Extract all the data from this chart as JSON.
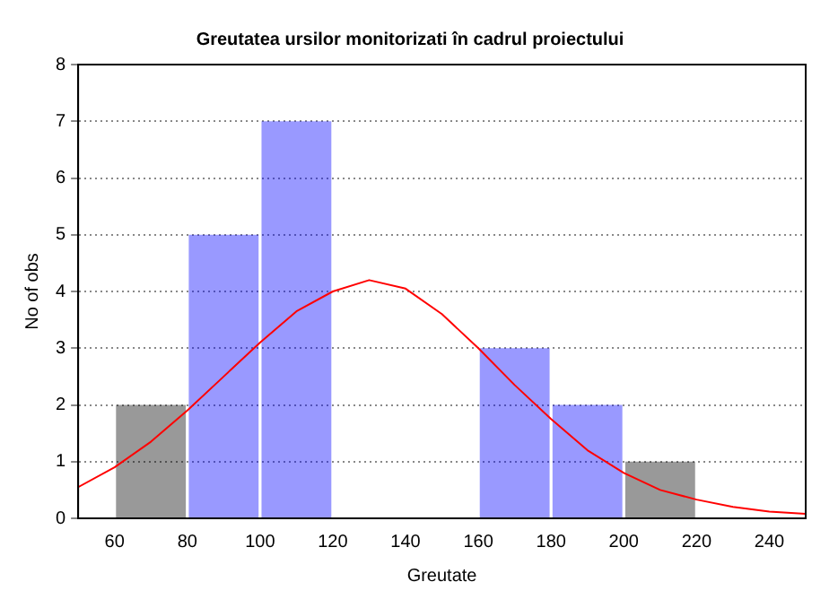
{
  "chart_data": {
    "type": "histogram",
    "title": "Greutatea ursilor monitorizati în cadrul proiectului",
    "xlabel": "Greutate",
    "ylabel": "No of obs",
    "bins": [
      60,
      80,
      100,
      120,
      140,
      160,
      180,
      200,
      220
    ],
    "values": [
      2,
      5,
      7,
      0,
      0,
      3,
      2,
      1
    ],
    "colors": [
      "#000000",
      "#0000ff",
      "#0000ff",
      "#000000",
      "#000000",
      "#0000ff",
      "#0000ff",
      "#000000"
    ],
    "series": [
      {
        "type": "line",
        "color": "#ff0000",
        "x": [
          50,
          60,
          70,
          80,
          90,
          100,
          110,
          120,
          130,
          140,
          150,
          160,
          170,
          180,
          190,
          200,
          210,
          220,
          230,
          240,
          250
        ],
        "values": [
          0.55,
          0.9,
          1.35,
          1.9,
          2.5,
          3.1,
          3.65,
          4.0,
          4.2,
          4.05,
          3.6,
          3.0,
          2.35,
          1.75,
          1.2,
          0.8,
          0.5,
          0.33,
          0.2,
          0.12,
          0.08
        ]
      }
    ],
    "xlim": [
      50,
      250
    ],
    "xticks": [
      60,
      80,
      100,
      120,
      140,
      160,
      180,
      200,
      220,
      240
    ],
    "ylim": [
      0,
      8
    ],
    "yticks": [
      0,
      1,
      2,
      3,
      4,
      5,
      6,
      7,
      8
    ],
    "grid": "y",
    "legend": false,
    "marker": "none",
    "line_style": "solid"
  }
}
